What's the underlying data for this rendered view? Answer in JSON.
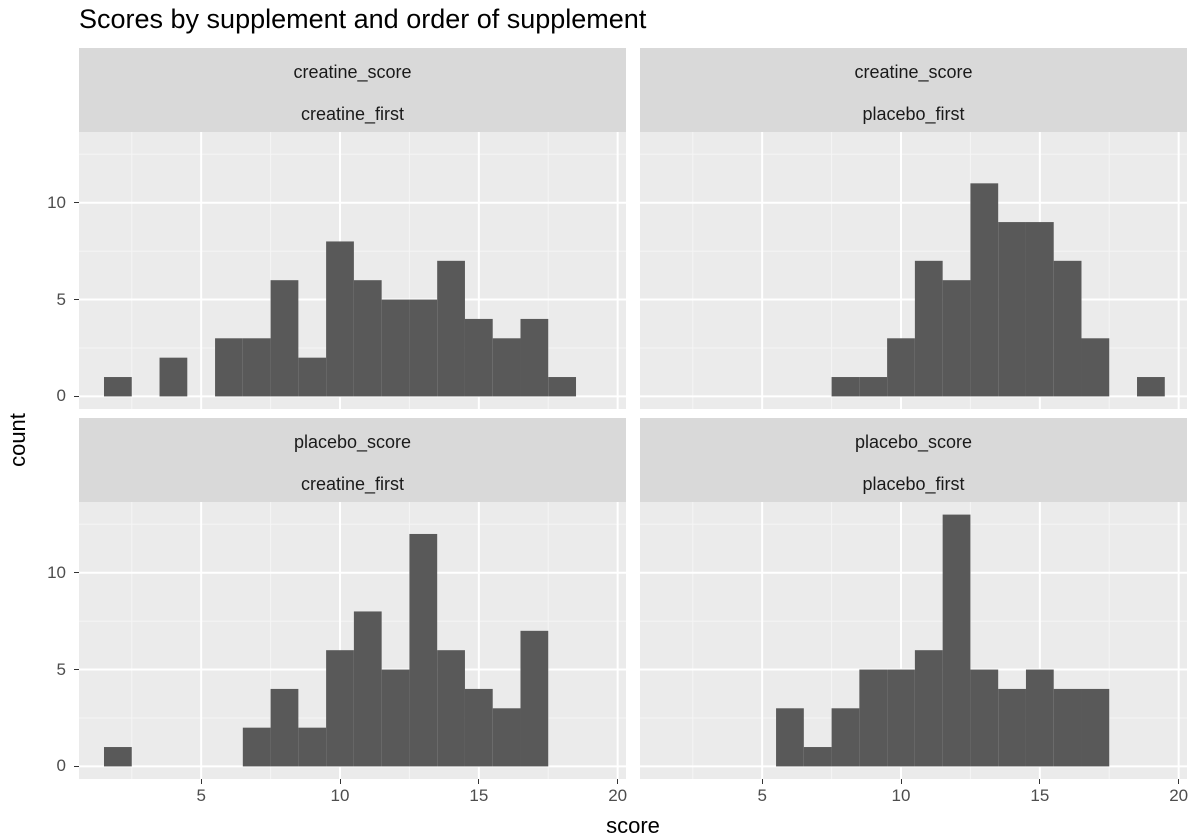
{
  "chart_data": {
    "type": "histogram",
    "title": "Scores by supplement and order of supplement",
    "xlabel": "score",
    "ylabel": "count",
    "xlim": [
      0.6,
      20.3
    ],
    "x_ticks": [
      5,
      10,
      15,
      20
    ],
    "y_ticks": [
      0,
      5,
      10
    ],
    "ylim": [
      -0.65,
      13.65
    ],
    "bin_width": 1,
    "grid": true,
    "bar_color": "#595959",
    "panel_background": "#ebebeb",
    "strip_background": "#d9d9d9",
    "panels": [
      {
        "row_label": "creatine_score",
        "col_label": "creatine_first",
        "bins": [
          {
            "x": 2,
            "count": 1
          },
          {
            "x": 4,
            "count": 2
          },
          {
            "x": 6,
            "count": 3
          },
          {
            "x": 7,
            "count": 3
          },
          {
            "x": 8,
            "count": 6
          },
          {
            "x": 9,
            "count": 2
          },
          {
            "x": 10,
            "count": 8
          },
          {
            "x": 11,
            "count": 6
          },
          {
            "x": 12,
            "count": 5
          },
          {
            "x": 13,
            "count": 5
          },
          {
            "x": 14,
            "count": 7
          },
          {
            "x": 15,
            "count": 4
          },
          {
            "x": 16,
            "count": 3
          },
          {
            "x": 17,
            "count": 4
          },
          {
            "x": 18,
            "count": 1
          }
        ]
      },
      {
        "row_label": "creatine_score",
        "col_label": "placebo_first",
        "bins": [
          {
            "x": 8,
            "count": 1
          },
          {
            "x": 9,
            "count": 1
          },
          {
            "x": 10,
            "count": 3
          },
          {
            "x": 11,
            "count": 7
          },
          {
            "x": 12,
            "count": 6
          },
          {
            "x": 13,
            "count": 11
          },
          {
            "x": 14,
            "count": 9
          },
          {
            "x": 15,
            "count": 9
          },
          {
            "x": 16,
            "count": 7
          },
          {
            "x": 17,
            "count": 3
          },
          {
            "x": 19,
            "count": 1
          }
        ]
      },
      {
        "row_label": "placebo_score",
        "col_label": "creatine_first",
        "bins": [
          {
            "x": 2,
            "count": 1
          },
          {
            "x": 7,
            "count": 2
          },
          {
            "x": 8,
            "count": 4
          },
          {
            "x": 9,
            "count": 2
          },
          {
            "x": 10,
            "count": 6
          },
          {
            "x": 11,
            "count": 8
          },
          {
            "x": 12,
            "count": 5
          },
          {
            "x": 13,
            "count": 12
          },
          {
            "x": 14,
            "count": 6
          },
          {
            "x": 15,
            "count": 4
          },
          {
            "x": 16,
            "count": 3
          },
          {
            "x": 17,
            "count": 7
          }
        ]
      },
      {
        "row_label": "placebo_score",
        "col_label": "placebo_first",
        "bins": [
          {
            "x": 6,
            "count": 3
          },
          {
            "x": 7,
            "count": 1
          },
          {
            "x": 8,
            "count": 3
          },
          {
            "x": 9,
            "count": 5
          },
          {
            "x": 10,
            "count": 5
          },
          {
            "x": 11,
            "count": 6
          },
          {
            "x": 12,
            "count": 13
          },
          {
            "x": 13,
            "count": 5
          },
          {
            "x": 14,
            "count": 4
          },
          {
            "x": 15,
            "count": 5
          },
          {
            "x": 16,
            "count": 4
          },
          {
            "x": 17,
            "count": 4
          }
        ]
      }
    ]
  }
}
